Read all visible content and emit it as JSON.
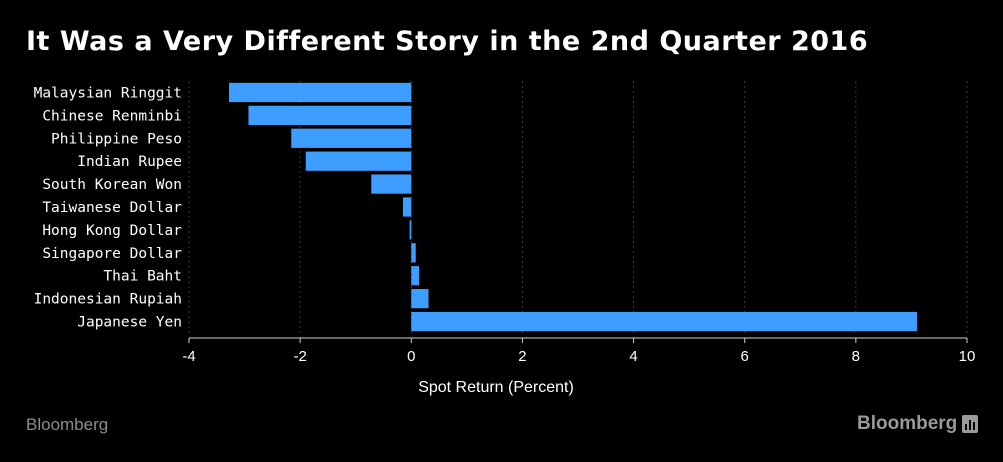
{
  "title": "It Was a Very Different Story in the 2nd Quarter 2016",
  "source_note": "Bloomberg",
  "logo_text": "Bloomberg",
  "colors": {
    "bar": "#3d9eff",
    "background": "#000000",
    "grid": "#3a3a3a",
    "text": "#ffffff"
  },
  "chart_data": {
    "type": "bar",
    "orientation": "horizontal",
    "categories": [
      "Malaysian Ringgit",
      "Chinese Renminbi",
      "Philippine Peso",
      "Indian Rupee",
      "South Korean Won",
      "Taiwanese Dollar",
      "Hong Kong Dollar",
      "Singapore Dollar",
      "Thai Baht",
      "Indonesian Rupiah",
      "Japanese Yen"
    ],
    "values": [
      -3.28,
      -2.93,
      -2.16,
      -1.9,
      -0.72,
      -0.15,
      -0.03,
      0.08,
      0.14,
      0.31,
      9.1
    ],
    "xlabel": "Spot Return (Percent)",
    "ylabel": "",
    "xlim": [
      -4,
      10
    ],
    "xticks": [
      -4,
      -2,
      0,
      2,
      4,
      6,
      8,
      10
    ],
    "xtick_labels": [
      "-4",
      "-2",
      "0",
      "2",
      "4",
      "6",
      "8",
      "10"
    ],
    "grid": "vertical dotted"
  }
}
